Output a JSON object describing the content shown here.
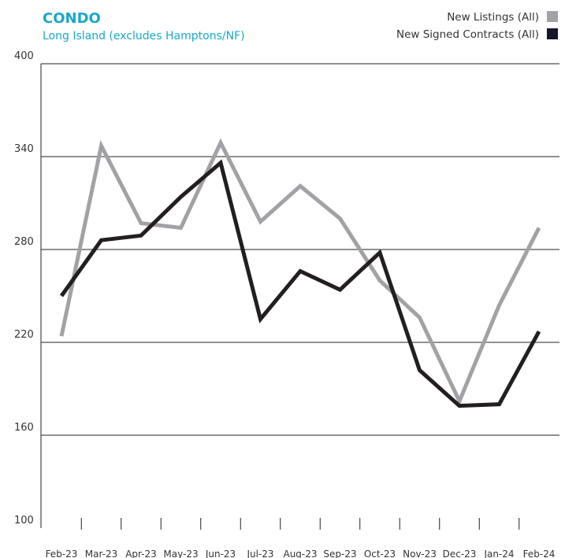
{
  "chart_data": {
    "type": "line",
    "title": "CONDO",
    "subtitle": "Long Island (excludes Hamptons/NF)",
    "categories": [
      "Feb-23",
      "Mar-23",
      "Apr-23",
      "May-23",
      "Jun-23",
      "Jul-23",
      "Aug-23",
      "Sep-23",
      "Oct-23",
      "Nov-23",
      "Dec-23",
      "Jan-24",
      "Feb-24"
    ],
    "series": [
      {
        "name": "New Listings (All)",
        "color": "#a2a2a6",
        "values": [
          224,
          347,
          297,
          294,
          349,
          298,
          321,
          300,
          260,
          236,
          182,
          244,
          294
        ]
      },
      {
        "name": "New Signed Contracts (All)",
        "color": "#231f20",
        "values": [
          250,
          286,
          289,
          314,
          336,
          235,
          266,
          254,
          278,
          202,
          179,
          180,
          227
        ]
      }
    ],
    "ylim": [
      100,
      400
    ],
    "yticks": [
      100,
      160,
      220,
      280,
      340,
      400
    ],
    "grid": true,
    "legend": "top-right"
  }
}
